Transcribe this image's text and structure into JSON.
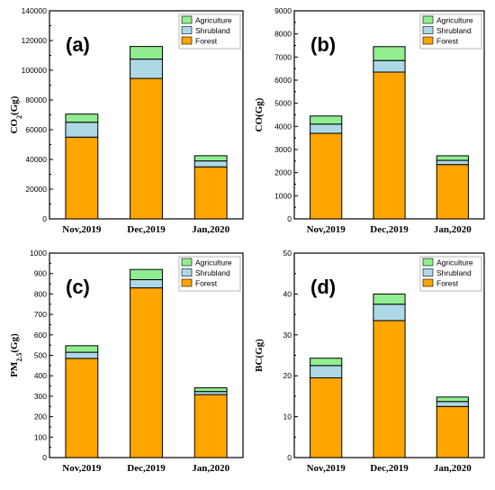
{
  "colors": {
    "Forest": "#FFA500",
    "Shrubland": "#ADD8E6",
    "Agriculture": "#90EE90",
    "edge": "#000000"
  },
  "chart_data": [
    {
      "type": "bar",
      "stacked": true,
      "panel_label": "(a)",
      "ylabel": "CO",
      "ylabel_sub": "2",
      "ylabel_suffix": "(Gg)",
      "ylim": [
        0,
        140000
      ],
      "yticks": [
        0,
        20000,
        40000,
        60000,
        80000,
        100000,
        120000,
        140000
      ],
      "categories": [
        "Nov,2019",
        "Dec,2019",
        "Jan,2020"
      ],
      "legend_position": "top-right",
      "series": [
        {
          "name": "Forest",
          "values": [
            55000,
            94500,
            35000
          ]
        },
        {
          "name": "Shrubland",
          "values": [
            10000,
            13000,
            4000
          ]
        },
        {
          "name": "Agriculture",
          "values": [
            5500,
            8500,
            3500
          ]
        }
      ]
    },
    {
      "type": "bar",
      "stacked": true,
      "panel_label": "(b)",
      "ylabel": "CO(Gg)",
      "ylabel_sub": "",
      "ylabel_suffix": "",
      "ylim": [
        0,
        9000
      ],
      "yticks": [
        0,
        1000,
        2000,
        3000,
        4000,
        5000,
        6000,
        7000,
        8000,
        9000
      ],
      "categories": [
        "Nov,2019",
        "Dec,2019",
        "Jan,2020"
      ],
      "legend_position": "top-right",
      "series": [
        {
          "name": "Forest",
          "values": [
            3700,
            6350,
            2350
          ]
        },
        {
          "name": "Shrubland",
          "values": [
            400,
            500,
            180
          ]
        },
        {
          "name": "Agriculture",
          "values": [
            350,
            600,
            200
          ]
        }
      ]
    },
    {
      "type": "bar",
      "stacked": true,
      "panel_label": "(c)",
      "ylabel": "PM",
      "ylabel_sub": "2.5",
      "ylabel_suffix": "(Gg)",
      "ylim": [
        0,
        1000
      ],
      "yticks": [
        0,
        100,
        200,
        300,
        400,
        500,
        600,
        700,
        800,
        900,
        1000
      ],
      "categories": [
        "Nov,2019",
        "Dec,2019",
        "Jan,2020"
      ],
      "legend_position": "top-right",
      "series": [
        {
          "name": "Forest",
          "values": [
            485,
            830,
            308
          ]
        },
        {
          "name": "Shrubland",
          "values": [
            30,
            40,
            15
          ]
        },
        {
          "name": "Agriculture",
          "values": [
            32,
            50,
            18
          ]
        }
      ]
    },
    {
      "type": "bar",
      "stacked": true,
      "panel_label": "(d)",
      "ylabel": "BC(Gg)",
      "ylabel_sub": "",
      "ylabel_suffix": "",
      "ylim": [
        0,
        50
      ],
      "yticks": [
        0,
        10,
        20,
        30,
        40,
        50
      ],
      "categories": [
        "Nov,2019",
        "Dec,2019",
        "Jan,2020"
      ],
      "legend_position": "top-right",
      "series": [
        {
          "name": "Forest",
          "values": [
            19.5,
            33.5,
            12.5
          ]
        },
        {
          "name": "Shrubland",
          "values": [
            3,
            4,
            1.2
          ]
        },
        {
          "name": "Agriculture",
          "values": [
            1.8,
            2.5,
            1.1
          ]
        }
      ]
    }
  ]
}
